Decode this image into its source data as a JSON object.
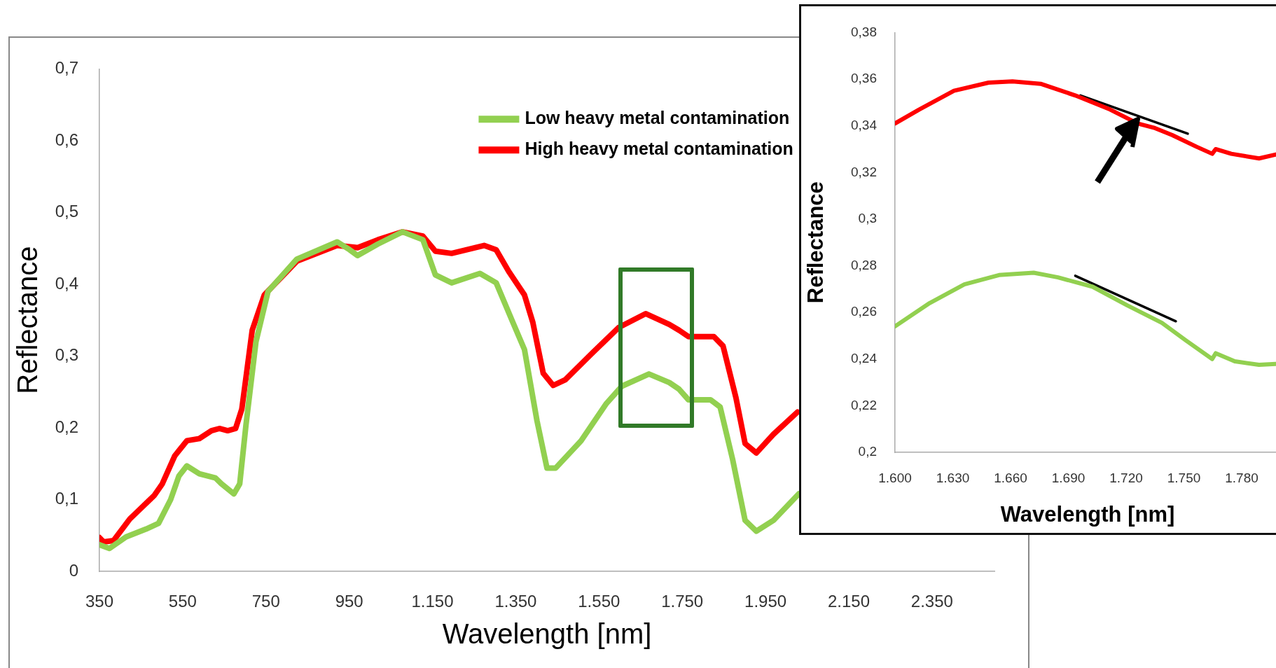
{
  "chart_data": [
    {
      "type": "line",
      "xlabel": "Wavelength [nm]",
      "ylabel": "Reflectance",
      "legend": "top",
      "marker": "none",
      "xlim": [
        350,
        2500
      ],
      "xticks": [
        350,
        550,
        750,
        950,
        {
          "value": 1150,
          "label": "1.150"
        },
        {
          "value": 1350,
          "label": "1.350"
        },
        {
          "value": 1550,
          "label": "1.550"
        },
        {
          "value": 1750,
          "label": "1.750"
        },
        {
          "value": 1950,
          "label": "1.950"
        },
        {
          "value": 2150,
          "label": "2.150"
        },
        {
          "value": 2350,
          "label": "2.350"
        }
      ],
      "ylim": [
        0,
        0.7
      ],
      "yticks": [
        0,
        {
          "value": 0.1,
          "label": "0,1"
        },
        {
          "value": 0.2,
          "label": "0,2"
        },
        {
          "value": 0.3,
          "label": "0,3"
        },
        {
          "value": 0.4,
          "label": "0,4"
        },
        {
          "value": 0.5,
          "label": "0,5"
        },
        {
          "value": 0.6,
          "label": "0,6"
        },
        {
          "value": 0.7,
          "label": "0,7"
        }
      ],
      "series": [
        {
          "name": "Low heavy metal contamination",
          "color": "#92d050",
          "x": [
            350,
            374,
            414,
            462,
            492,
            521,
            541,
            560,
            590,
            629,
            643,
            673,
            687,
            702,
            726,
            755,
            824,
            921,
            951,
            970,
            1019,
            1078,
            1127,
            1157,
            1196,
            1264,
            1303,
            1343,
            1371,
            1401,
            1425,
            1446,
            1507,
            1568,
            1605,
            1670,
            1719,
            1742,
            1765,
            1818,
            1841,
            1871,
            1901,
            1928,
            1969,
            2030
          ],
          "values": [
            0.037,
            0.032,
            0.048,
            0.059,
            0.067,
            0.1,
            0.133,
            0.147,
            0.136,
            0.13,
            0.122,
            0.108,
            0.122,
            0.204,
            0.32,
            0.39,
            0.435,
            0.459,
            0.448,
            0.44,
            0.456,
            0.473,
            0.462,
            0.413,
            0.402,
            0.415,
            0.402,
            0.347,
            0.309,
            0.21,
            0.144,
            0.144,
            0.182,
            0.234,
            0.258,
            0.275,
            0.263,
            0.254,
            0.239,
            0.239,
            0.229,
            0.156,
            0.071,
            0.056,
            0.071,
            0.108
          ]
        },
        {
          "name": "High heavy metal contamination",
          "color": "#ff0000",
          "x": [
            350,
            360,
            384,
            423,
            482,
            501,
            531,
            560,
            590,
            619,
            638,
            658,
            677,
            692,
            717,
            746,
            824,
            921,
            970,
            1019,
            1078,
            1127,
            1157,
            1196,
            1274,
            1303,
            1333,
            1371,
            1391,
            1416,
            1440,
            1469,
            1537,
            1598,
            1662,
            1719,
            1742,
            1765,
            1826,
            1848,
            1879,
            1901,
            1928,
            1969,
            2027
          ],
          "values": [
            0.047,
            0.041,
            0.043,
            0.073,
            0.106,
            0.122,
            0.161,
            0.182,
            0.185,
            0.196,
            0.199,
            0.196,
            0.199,
            0.226,
            0.336,
            0.385,
            0.432,
            0.454,
            0.451,
            0.462,
            0.473,
            0.467,
            0.446,
            0.443,
            0.454,
            0.448,
            0.418,
            0.385,
            0.347,
            0.276,
            0.259,
            0.267,
            0.306,
            0.34,
            0.359,
            0.344,
            0.336,
            0.327,
            0.327,
            0.314,
            0.242,
            0.178,
            0.165,
            0.191,
            0.222
          ]
        }
      ]
    },
    {
      "type": "line",
      "xlabel": "Wavelength [nm]",
      "ylabel": "Reflectance",
      "marker": "none",
      "xlim": [
        1600,
        1800
      ],
      "xticks": [
        {
          "value": 1600,
          "label": "1.600"
        },
        {
          "value": 1630,
          "label": "1.630"
        },
        {
          "value": 1660,
          "label": "1.660"
        },
        {
          "value": 1690,
          "label": "1.690"
        },
        {
          "value": 1720,
          "label": "1.720"
        },
        {
          "value": 1750,
          "label": "1.750"
        },
        {
          "value": 1780,
          "label": "1.780"
        }
      ],
      "ylim": [
        0.2,
        0.38
      ],
      "yticks": [
        {
          "value": 0.2,
          "label": "0,2"
        },
        {
          "value": 0.22,
          "label": "0,22"
        },
        {
          "value": 0.24,
          "label": "0,24"
        },
        {
          "value": 0.26,
          "label": "0,26"
        },
        {
          "value": 0.28,
          "label": "0,28"
        },
        {
          "value": 0.3,
          "label": "0,3"
        },
        {
          "value": 0.32,
          "label": "0,32"
        },
        {
          "value": 0.34,
          "label": "0,34"
        },
        {
          "value": 0.36,
          "label": "0,36"
        },
        {
          "value": 0.38,
          "label": "0,38"
        }
      ],
      "series": [
        {
          "color": "#ff0000",
          "x": [
            1600,
            1612.6,
            1630.6,
            1648.6,
            1661,
            1675.6,
            1693.6,
            1711.6,
            1726,
            1735,
            1744,
            1756.6,
            1764.7,
            1766.5,
            1774.6,
            1789,
            1799.4
          ],
          "values": [
            0.341,
            0.347,
            0.355,
            0.3585,
            0.359,
            0.358,
            0.353,
            0.347,
            0.341,
            0.339,
            0.336,
            0.331,
            0.328,
            0.33,
            0.328,
            0.326,
            0.328
          ]
        },
        {
          "color": "#92d050",
          "x": [
            1600,
            1618,
            1636,
            1654,
            1672,
            1684.6,
            1702.6,
            1720.6,
            1738.6,
            1751,
            1764.7,
            1766.5,
            1776.4,
            1789,
            1799.4
          ],
          "values": [
            0.254,
            0.264,
            0.272,
            0.276,
            0.277,
            0.275,
            0.271,
            0.263,
            0.2555,
            0.248,
            0.24,
            0.2425,
            0.239,
            0.2375,
            0.238
          ]
        },
        {
          "type": "line",
          "color": "#000000",
          "x": [
            1696.3,
            1752
          ],
          "values": [
            0.353,
            0.3366
          ]
        },
        {
          "type": "line",
          "color": "#000000",
          "x": [
            1693.6,
            1745.8
          ],
          "values": [
            0.2757,
            0.2562
          ]
        }
      ]
    }
  ]
}
